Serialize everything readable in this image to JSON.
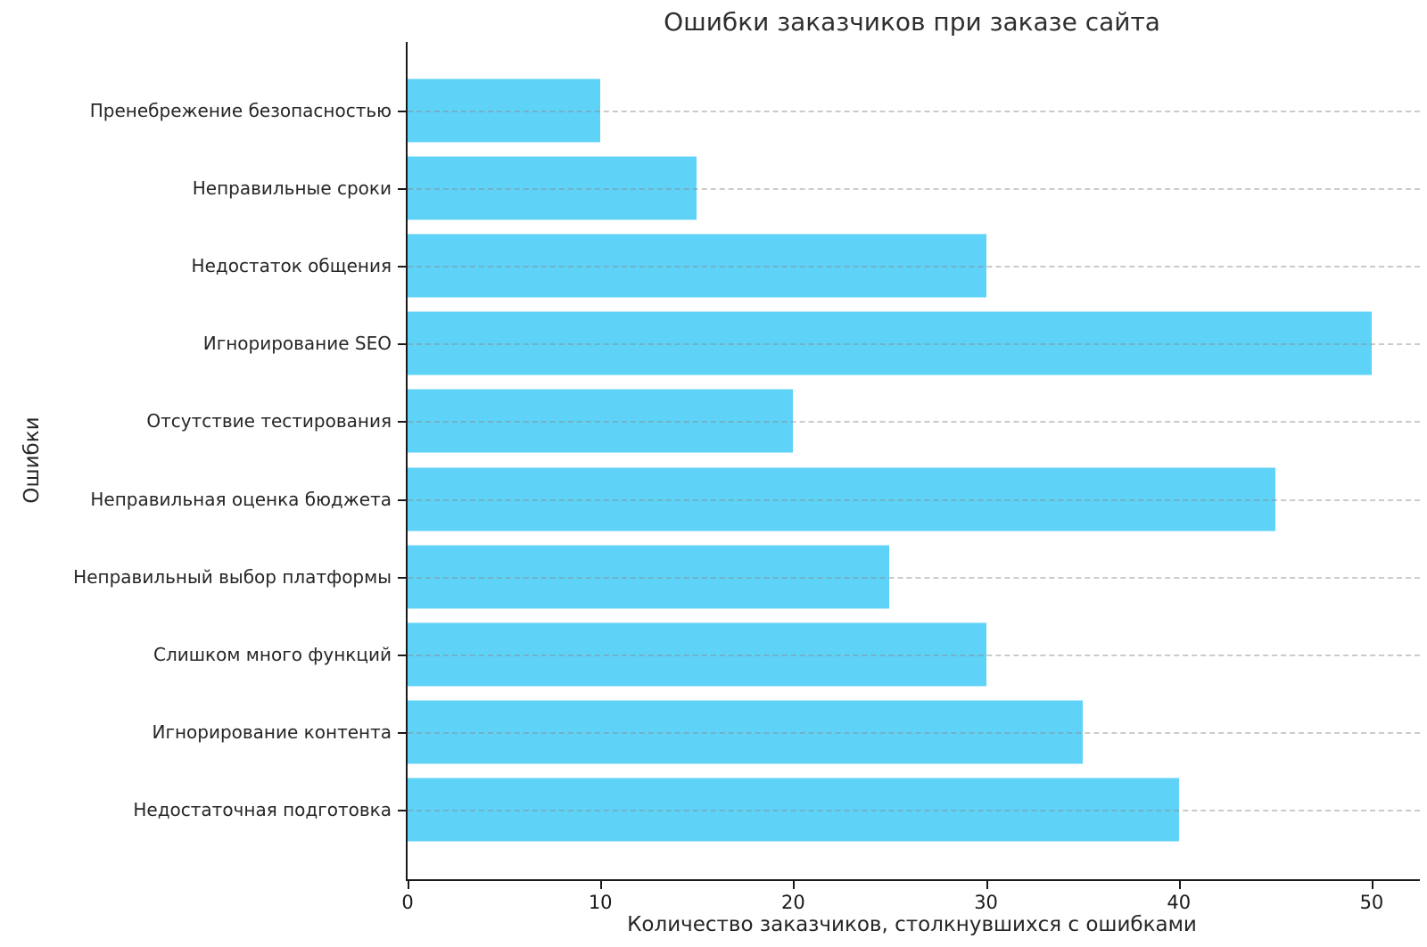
{
  "chart_data": {
    "type": "bar",
    "orientation": "horizontal",
    "title": "Ошибки заказчиков при заказе сайта",
    "xlabel": "Количество заказчиков, столкнувшихся с ошибками",
    "ylabel": "Ошибки",
    "categories": [
      "Пренебрежение безопасностью",
      "Неправильные сроки",
      "Недостаток общения",
      "Игнорирование SEO",
      "Отсутствие тестирования",
      "Неправильная оценка бюджета",
      "Неправильный выбор платформы",
      "Слишком много функций",
      "Игнорирование контента",
      "Недостаточная подготовка"
    ],
    "values": [
      10,
      15,
      30,
      50,
      20,
      45,
      25,
      30,
      35,
      40
    ],
    "xticks": [
      0,
      10,
      20,
      30,
      40,
      50
    ],
    "xlim": [
      0,
      52.5
    ],
    "bar_color": "#5ED2F7",
    "grid": {
      "axis": "y",
      "style": "dashed",
      "color": "#8c8c8c"
    },
    "legend": "none",
    "spines": "left-bottom-only"
  }
}
